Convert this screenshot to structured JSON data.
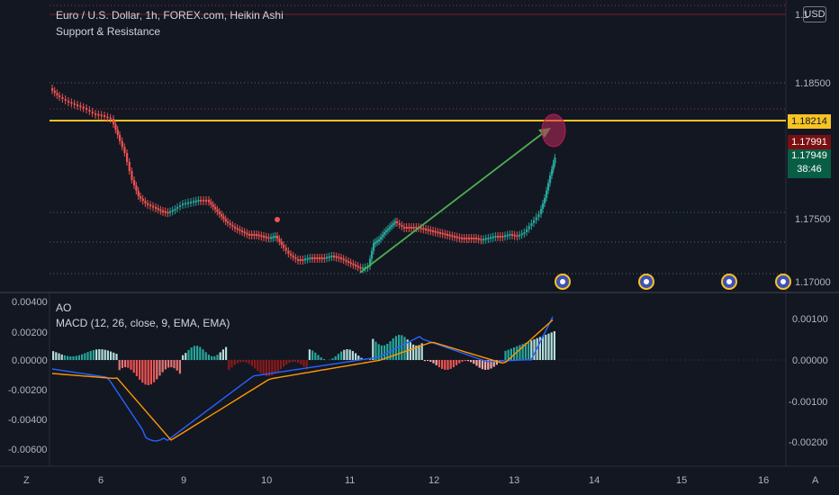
{
  "header": {
    "title": "Euro / U.S. Dollar, 1h, FOREX.com, Heikin Ashi",
    "indicator": "Support & Resistance",
    "currency": "USD"
  },
  "price_axis": [
    "1.1",
    "1.18500",
    "1.17500",
    "1.17000"
  ],
  "price_tags": {
    "resistance": "1.18214",
    "red": "1.17991",
    "current": "1.17949",
    "countdown": "38:46"
  },
  "sub_pane": {
    "ao_label": "AO",
    "macd_label": "MACD (12, 26, close, 9, EMA, EMA)",
    "left_axis": [
      "0.00400",
      "0.00200",
      "0.00000",
      "-0.00200",
      "-0.00400",
      "-0.00600"
    ],
    "right_axis": [
      "0.00100",
      "0.00000",
      "-0.00100",
      "-0.00200"
    ]
  },
  "time_axis": [
    "6",
    "9",
    "10",
    "11",
    "12",
    "13",
    "14",
    "15",
    "16"
  ],
  "corner": {
    "left": "Z",
    "right": "A"
  },
  "colors": {
    "background": "#131722",
    "up": "#26a69a",
    "down": "#ef5350",
    "resistance": "#f7c325",
    "arrow": "#4caf50",
    "macd": "#2962ff",
    "signal": "#ff9800"
  }
}
